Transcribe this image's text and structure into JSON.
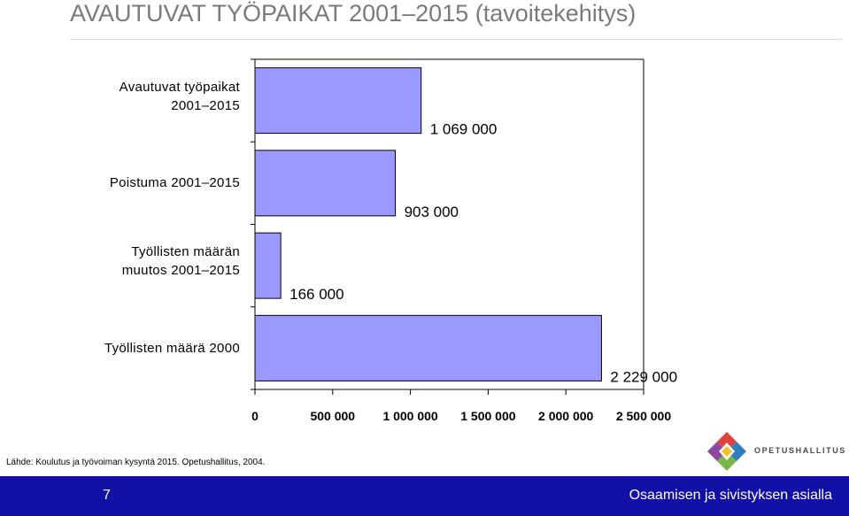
{
  "title": "AVAUTUVAT TYÖPAIKAT 2001–2015 (tavoitekehitys)",
  "chart_data": {
    "type": "bar",
    "orientation": "horizontal",
    "categories": [
      [
        "Avautuvat työpaikat",
        "2001–2015"
      ],
      [
        "Poistuma 2001–2015"
      ],
      [
        "Työllisten määrän",
        "muutos 2001–2015"
      ],
      [
        "Työllisten määrä 2000"
      ]
    ],
    "values": [
      1069000,
      903000,
      166000,
      2229000
    ],
    "data_labels": [
      "1 069 000",
      "903 000",
      "166 000",
      "2 229 000"
    ],
    "xlim": [
      0,
      2500000
    ],
    "xticks": [
      0,
      500000,
      1000000,
      1500000,
      2000000,
      2500000
    ],
    "xtick_labels": [
      "0",
      "500 000",
      "1 000 000",
      "1 500 000",
      "2 000 000",
      "2 500 000"
    ],
    "grid": false,
    "bar_color": "#9999ff"
  },
  "source": "Lähde: Koulutus ja työvoiman kysyntä 2015. Opetushallitus, 2004.",
  "logo_text": "OPETUSHALLITUS",
  "footer": {
    "page_number": "7",
    "text": "Osaamisen ja sivistyksen asialla",
    "color": "#1111a8"
  }
}
